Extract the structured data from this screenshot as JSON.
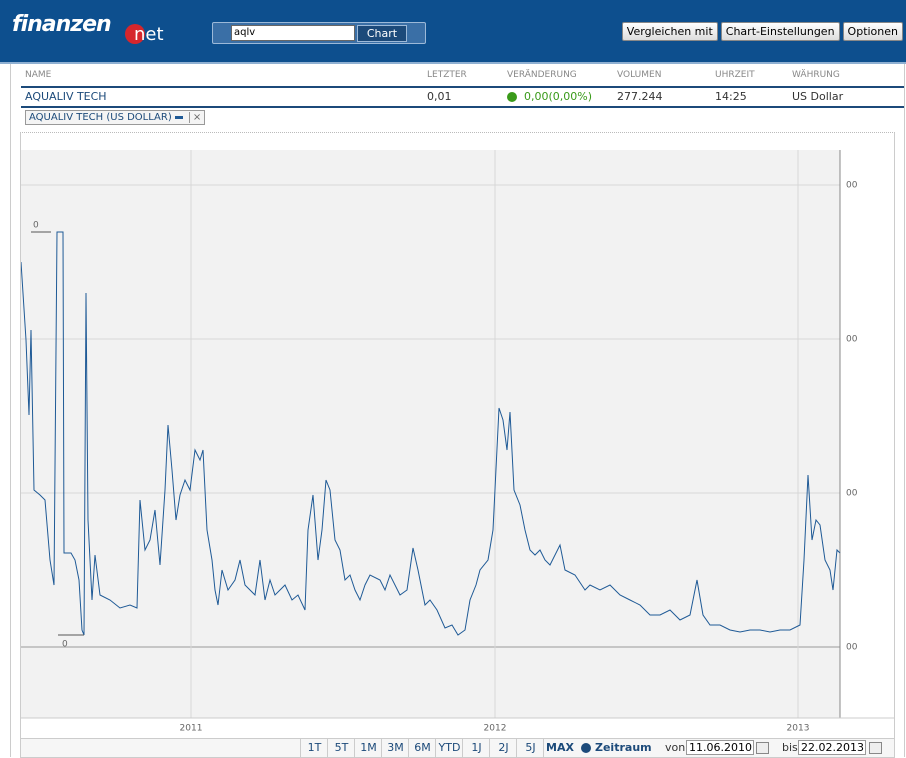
{
  "header": {
    "logo_main": "finanzen",
    "logo_suffix": "net",
    "search_value": "aqlv",
    "search_button": "Chart",
    "buttons": [
      "Vergleichen mit",
      "Chart-Einstellungen",
      "Optionen"
    ]
  },
  "quote_table": {
    "columns": [
      "NAME",
      "LETZTER",
      "VERÄNDERUNG",
      "VOLUMEN",
      "UHRZEIT",
      "WÄHRUNG"
    ],
    "row": [
      "AQUALIV TECH",
      "0,01",
      "0,00(0,00%)",
      "277.244",
      "14:25",
      "US Dollar"
    ]
  },
  "chart_data": {
    "type": "line",
    "xlim": [
      0,
      819
    ],
    "xticks": [
      {
        "value": 170,
        "label": "2011"
      },
      {
        "value": 474,
        "label": "2012"
      },
      {
        "value": 777,
        "label": "2013"
      }
    ],
    "ylim": [
      -71,
      497
    ],
    "yticks": [
      {
        "value": 0,
        "label": "00"
      },
      {
        "value": 154,
        "label": "00"
      },
      {
        "value": 308,
        "label": "00"
      },
      {
        "value": 462,
        "label": "00"
      }
    ],
    "grid": true,
    "max_label": "0",
    "min_label": "0",
    "series": [
      {
        "name": "AQUALIV TECH (US DOLLAR)",
        "color": "#1f5a96",
        "x": [
          0,
          5,
          8,
          10,
          13,
          19,
          24,
          29,
          33,
          36,
          42,
          43,
          50,
          54,
          58,
          61,
          63,
          65,
          67,
          71,
          74,
          79,
          89,
          99,
          109,
          116,
          119,
          124,
          129,
          134,
          139,
          144,
          147,
          151,
          155,
          159,
          164,
          169,
          174,
          179,
          182,
          186,
          191,
          194,
          197,
          201,
          207,
          214,
          219,
          224,
          229,
          234,
          239,
          244,
          249,
          254,
          259,
          264,
          271,
          277,
          284,
          287,
          292,
          297,
          301,
          305,
          309,
          314,
          319,
          324,
          329,
          334,
          339,
          344,
          349,
          359,
          364,
          369,
          379,
          386,
          392,
          397,
          404,
          409,
          416,
          424,
          431,
          437,
          444,
          449,
          455,
          459,
          467,
          472,
          478,
          482,
          486,
          489,
          493,
          499,
          504,
          509,
          514,
          519,
          524,
          529,
          539,
          544,
          554,
          564,
          569,
          579,
          589,
          599,
          609,
          619,
          629,
          639,
          649,
          659,
          669,
          676,
          682,
          689,
          699,
          709,
          719,
          729,
          739,
          749,
          759,
          769,
          779,
          783,
          787,
          791,
          795,
          799,
          804,
          809,
          812,
          816,
          819
        ],
        "values": [
          385,
          307,
          232,
          317,
          157,
          152,
          147,
          87,
          62,
          415,
          415,
          94,
          94,
          87,
          67,
          17,
          12,
          354,
          127,
          47,
          92,
          52,
          47,
          39,
          42,
          39,
          147,
          97,
          107,
          137,
          82,
          157,
          222,
          177,
          127,
          152,
          167,
          157,
          197,
          187,
          197,
          117,
          87,
          57,
          42,
          77,
          57,
          67,
          87,
          62,
          57,
          52,
          87,
          47,
          67,
          52,
          57,
          62,
          47,
          52,
          37,
          117,
          152,
          87,
          117,
          167,
          157,
          107,
          97,
          67,
          72,
          57,
          47,
          62,
          72,
          67,
          57,
          72,
          52,
          57,
          99,
          77,
          42,
          47,
          37,
          19,
          22,
          12,
          17,
          47,
          62,
          77,
          87,
          117,
          239,
          227,
          197,
          235,
          157,
          142,
          117,
          97,
          92,
          97,
          87,
          82,
          102,
          77,
          72,
          57,
          62,
          57,
          62,
          52,
          47,
          42,
          32,
          32,
          37,
          27,
          32,
          67,
          32,
          22,
          22,
          17,
          15,
          17,
          17,
          15,
          17,
          17,
          22,
          87,
          172,
          107,
          127,
          122,
          87,
          77,
          57,
          97,
          94
        ]
      }
    ]
  },
  "toolbar": {
    "ranges": [
      "1T",
      "5T",
      "1M",
      "3M",
      "6M",
      "YTD",
      "1J",
      "2J",
      "5J",
      "MAX"
    ],
    "period_label": "Zeitraum",
    "from_label": "von",
    "from": "11.06.2010",
    "to_label": "bis",
    "to": "22.02.2013"
  }
}
